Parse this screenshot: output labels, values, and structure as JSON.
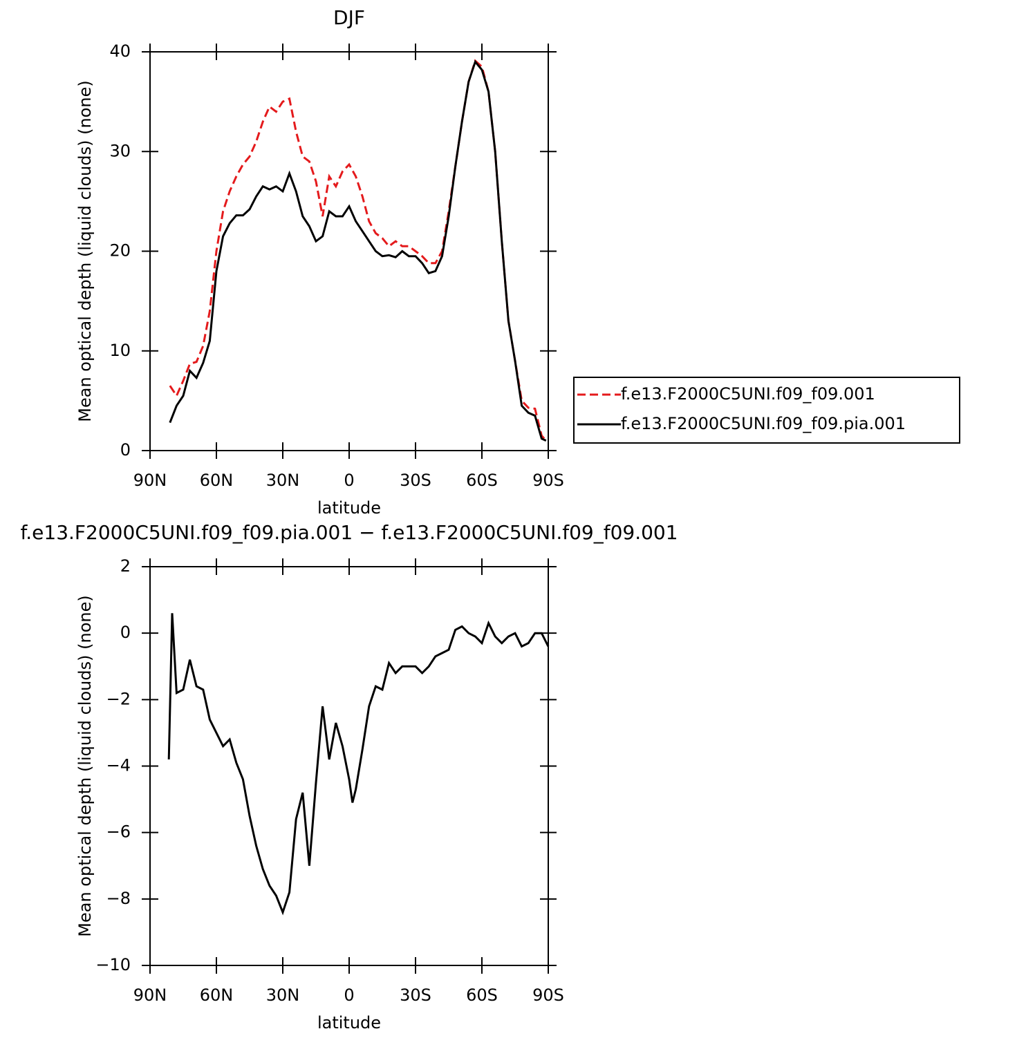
{
  "chart_data": [
    {
      "type": "line",
      "title": "DJF",
      "xlabel": "latitude",
      "ylabel": "Mean optical depth (liquid clouds) (none)",
      "x": [
        81,
        78,
        75,
        72,
        69,
        66,
        63,
        60,
        57,
        54,
        51,
        48,
        45,
        42,
        39,
        36,
        33,
        30,
        27,
        24,
        21,
        18,
        15,
        12,
        9,
        6,
        3,
        0,
        -3,
        -6,
        -9,
        -12,
        -15,
        -18,
        -21,
        -24,
        -27,
        -30,
        -33,
        -36,
        -39,
        -42,
        -45,
        -48,
        -51,
        -54,
        -57,
        -60,
        -63,
        -66,
        -69,
        -72,
        -75,
        -78,
        -81,
        -84,
        -87,
        -89
      ],
      "series": [
        {
          "name": "f.e13.F2000C5UNI.f09_f09.001",
          "color": "#e41a1c",
          "linestyle": "dashed",
          "values": [
            6.5,
            5.5,
            7,
            8.7,
            8.9,
            10.5,
            14,
            20,
            24,
            26,
            27.5,
            28.7,
            29.5,
            31,
            33,
            34.5,
            34,
            35,
            35.3,
            32,
            29.5,
            29,
            27,
            23.5,
            27.5,
            26.5,
            28,
            28.7,
            27.5,
            25.5,
            23,
            21.8,
            21.3,
            20.5,
            21,
            20.5,
            20.5,
            20,
            19.5,
            18.8,
            18.8,
            20,
            24,
            28.5,
            33,
            37,
            39.1,
            38.5,
            36,
            30,
            21,
            13,
            9,
            5,
            4.3,
            4.2,
            1.5,
            1
          ]
        },
        {
          "name": "f.e13.F2000C5UNI.f09_f09.pia.001",
          "color": "#000000",
          "linestyle": "solid",
          "values": [
            2.8,
            4.5,
            5.5,
            8,
            7.3,
            8.8,
            11,
            18,
            21.5,
            22.8,
            23.6,
            23.6,
            24.2,
            25.5,
            26.5,
            26.2,
            26.5,
            26,
            27.8,
            26,
            23.5,
            22.5,
            21,
            21.5,
            24,
            23.5,
            23.5,
            24.5,
            23,
            22,
            21,
            20,
            19.5,
            19.6,
            19.4,
            20,
            19.5,
            19.5,
            18.8,
            17.8,
            18,
            19.5,
            23.5,
            28.5,
            33,
            37,
            39,
            38.2,
            36,
            30,
            21,
            13,
            9,
            4.5,
            3.8,
            3.5,
            1.2,
            1
          ]
        }
      ],
      "xlim": [
        90,
        -90
      ],
      "ylim": [
        0,
        40
      ],
      "xticks": [
        {
          "value": 90,
          "label": "90N"
        },
        {
          "value": 60,
          "label": "60N"
        },
        {
          "value": 30,
          "label": "30N"
        },
        0,
        {
          "value": -30,
          "label": "30S"
        },
        {
          "value": -60,
          "label": "60S"
        },
        {
          "value": -90,
          "label": "90S"
        }
      ],
      "yticks": [
        0,
        10,
        20,
        30,
        40
      ],
      "legend": "right"
    },
    {
      "type": "line",
      "title": "f.e13.F2000C5UNI.f09_f09.pia.001 − f.e13.F2000C5UNI.f09_f09.001",
      "xlabel": "latitude",
      "ylabel": "Mean optical depth (liquid clouds) (none)",
      "x": [
        81.5,
        80,
        78,
        75,
        72,
        69,
        66,
        63,
        60,
        57,
        54,
        51,
        48,
        45,
        42,
        39,
        36,
        33,
        30,
        27,
        24,
        21,
        18,
        15,
        12,
        9,
        6,
        3,
        0,
        -1.5,
        -3,
        -6,
        -9,
        -12,
        -15,
        -18,
        -21,
        -24,
        -27,
        -30,
        -33,
        -36,
        -39,
        -42,
        -45,
        -48,
        -51,
        -54,
        -57,
        -60,
        -63,
        -66,
        -69,
        -72,
        -75,
        -78,
        -81,
        -84,
        -87,
        -90
      ],
      "series": [
        {
          "color": "#000000",
          "linestyle": "solid",
          "values": [
            -3.8,
            0.6,
            -1.8,
            -1.7,
            -0.8,
            -1.6,
            -1.7,
            -2.6,
            -3.0,
            -3.4,
            -3.2,
            -3.9,
            -4.4,
            -5.5,
            -6.4,
            -7.1,
            -7.6,
            -7.9,
            -8.4,
            -7.8,
            -5.6,
            -4.8,
            -7.0,
            -4.5,
            -2.2,
            -3.8,
            -2.7,
            -3.4,
            -4.4,
            -5.1,
            -4.7,
            -3.5,
            -2.2,
            -1.6,
            -1.7,
            -0.9,
            -1.2,
            -1.0,
            -1.0,
            -1.0,
            -1.2,
            -1.0,
            -0.7,
            -0.6,
            -0.5,
            0.1,
            0.2,
            0.0,
            -0.1,
            -0.3,
            0.3,
            -0.1,
            -0.3,
            -0.1,
            0.0,
            -0.4,
            -0.3,
            0.0,
            0.0,
            -0.4
          ]
        }
      ],
      "xlim": [
        90,
        -90
      ],
      "ylim": [
        -10,
        2
      ],
      "xticks": [
        {
          "value": 90,
          "label": "90N"
        },
        {
          "value": 60,
          "label": "60N"
        },
        {
          "value": 30,
          "label": "30N"
        },
        0,
        {
          "value": -30,
          "label": "30S"
        },
        {
          "value": -60,
          "label": "60S"
        },
        {
          "value": -90,
          "label": "90S"
        }
      ],
      "yticks": [
        {
          "value": -10,
          "label": "−10"
        },
        {
          "value": -8,
          "label": "−8"
        },
        {
          "value": -6,
          "label": "−6"
        },
        {
          "value": -4,
          "label": "−4"
        },
        {
          "value": -2,
          "label": "−2"
        },
        0,
        2
      ]
    }
  ]
}
